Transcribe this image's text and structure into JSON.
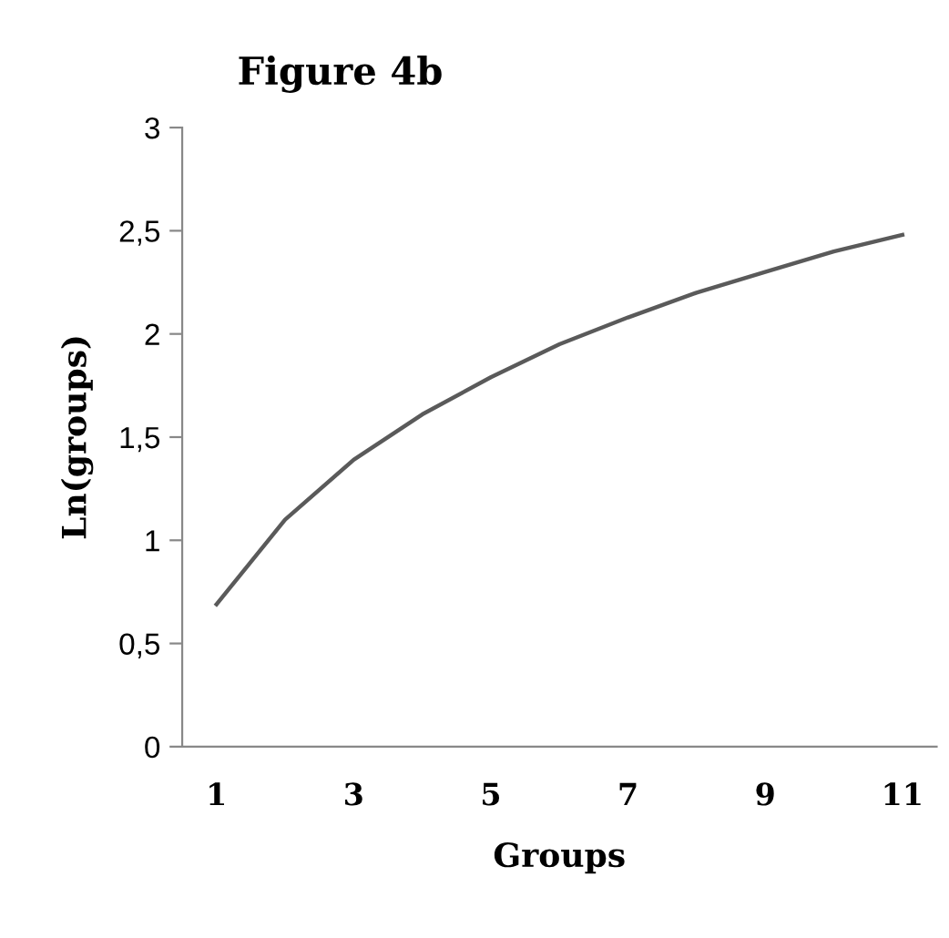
{
  "chart_data": {
    "type": "line",
    "title": "Figure 4b",
    "xlabel": "Groups",
    "ylabel": "Ln(groups)",
    "categories": [
      "1",
      null,
      "3",
      null,
      "5",
      null,
      "7",
      null,
      "9",
      null,
      "11"
    ],
    "series": [
      {
        "color": "#5a5a5a",
        "values": [
          0.69,
          1.1,
          1.39,
          1.61,
          1.79,
          1.95,
          2.08,
          2.2,
          2.3,
          2.4,
          2.48
        ]
      }
    ],
    "ylim": [
      0,
      3
    ],
    "yticks": [
      0,
      {
        "value": 0.5,
        "label": "0,5"
      },
      1,
      {
        "value": 1.5,
        "label": "1,5"
      },
      2,
      {
        "value": 2.5,
        "label": "2,5"
      },
      3
    ],
    "grid": false,
    "marker": "none",
    "line_style": "solid"
  }
}
